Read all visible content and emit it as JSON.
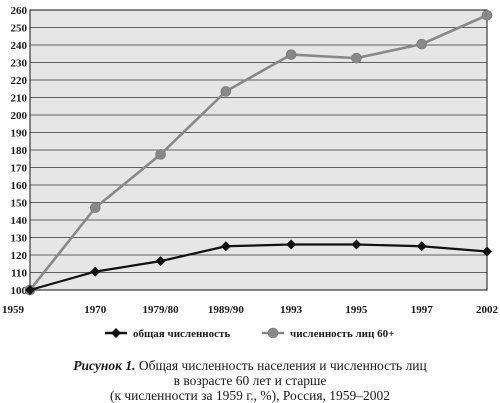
{
  "chart_data": {
    "type": "line",
    "categories": [
      "1959",
      "1970",
      "1979/80",
      "1989/90",
      "1993",
      "1995",
      "1997",
      "2002"
    ],
    "series": [
      {
        "name": "общая численность",
        "values": [
          100,
          110.5,
          116.5,
          125,
          126,
          126,
          125,
          122
        ],
        "color": "#111111",
        "marker": "diamond"
      },
      {
        "name": "численность лиц 60+",
        "values": [
          100,
          147,
          177.5,
          213.5,
          234.5,
          232.5,
          240.5,
          257
        ],
        "color": "#888888",
        "marker": "circle"
      }
    ],
    "ylim": [
      100,
      260
    ],
    "yticks": [
      100,
      110,
      120,
      130,
      140,
      150,
      160,
      170,
      180,
      190,
      200,
      210,
      220,
      230,
      240,
      250,
      260
    ],
    "grid": true,
    "legend": "bottom",
    "plot_background": "#e6e6e6"
  },
  "caption": {
    "lead": "Рисунок 1.",
    "line1": "Общая численность населения и численность лиц",
    "line2": "в возрасте 60 лет и старше",
    "line3": "(к численности за 1959 г., %), Россия, 1959–2002"
  }
}
